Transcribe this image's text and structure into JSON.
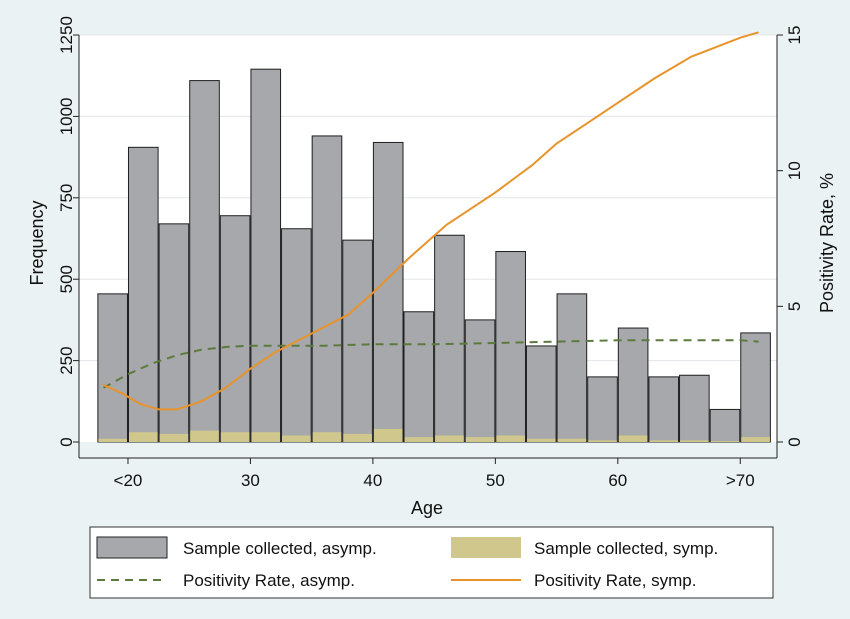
{
  "chart_data": {
    "type": "bar",
    "xlabel": "Age",
    "ylabel": "Frequency",
    "y2label": "Positivity Rate, %",
    "xticks": [
      {
        "value": 20,
        "label": "<20"
      },
      {
        "value": 30,
        "label": "30"
      },
      {
        "value": 40,
        "label": "40"
      },
      {
        "value": 50,
        "label": "50"
      },
      {
        "value": 60,
        "label": "60"
      },
      {
        "value": 70,
        "label": ">70"
      }
    ],
    "xlim": [
      16,
      73
    ],
    "ylim": [
      0,
      1250
    ],
    "y2lim": [
      0,
      15
    ],
    "yticks": [
      0,
      250,
      500,
      750,
      1000,
      1250
    ],
    "y2ticks": [
      0,
      5,
      10,
      15
    ],
    "grid": true,
    "legend_position": "bottom",
    "bin_starts": [
      17.5,
      20,
      22.5,
      25,
      27.5,
      30,
      32.5,
      35,
      37.5,
      40,
      42.5,
      45,
      47.5,
      50,
      52.5,
      55,
      57.5,
      60,
      62.5,
      65,
      67.5,
      70
    ],
    "bin_width": 2.5,
    "series": [
      {
        "name": "Sample collected, asymp.",
        "kind": "bar",
        "color": "#a6a8ab",
        "values": [
          455,
          905,
          670,
          1110,
          695,
          1145,
          655,
          940,
          620,
          920,
          400,
          635,
          375,
          585,
          295,
          455,
          200,
          350,
          200,
          205,
          100,
          335
        ]
      },
      {
        "name": "Sample collected, symp.",
        "kind": "bar",
        "color": "#cfc78c",
        "values": [
          10,
          30,
          25,
          35,
          30,
          30,
          20,
          30,
          25,
          40,
          15,
          20,
          15,
          20,
          10,
          10,
          5,
          20,
          5,
          5,
          3,
          15
        ]
      },
      {
        "name": "Positivity Rate, asymp.",
        "kind": "line",
        "axis": "right",
        "color": "#5d7a3e",
        "dash": true,
        "x": [
          18,
          20,
          22,
          24,
          26,
          28,
          30,
          33,
          36,
          40,
          45,
          50,
          55,
          60,
          65,
          70,
          71.5
        ],
        "y": [
          2.0,
          2.5,
          2.9,
          3.2,
          3.4,
          3.5,
          3.55,
          3.55,
          3.55,
          3.6,
          3.6,
          3.65,
          3.7,
          3.75,
          3.75,
          3.75,
          3.7
        ]
      },
      {
        "name": "Positivity Rate, symp.",
        "kind": "line",
        "axis": "right",
        "color": "#e8932b",
        "dash": false,
        "x": [
          18,
          19.5,
          21,
          22.5,
          24,
          26,
          28,
          30,
          32,
          35,
          38,
          40,
          43,
          46,
          50,
          53,
          55,
          57,
          60,
          63,
          66,
          70,
          71.5
        ],
        "y": [
          2.1,
          1.8,
          1.4,
          1.2,
          1.2,
          1.5,
          2.0,
          2.7,
          3.3,
          4.0,
          4.7,
          5.5,
          6.8,
          8.0,
          9.2,
          10.2,
          11.0,
          11.6,
          12.5,
          13.4,
          14.2,
          14.9,
          15.1
        ]
      }
    ]
  }
}
